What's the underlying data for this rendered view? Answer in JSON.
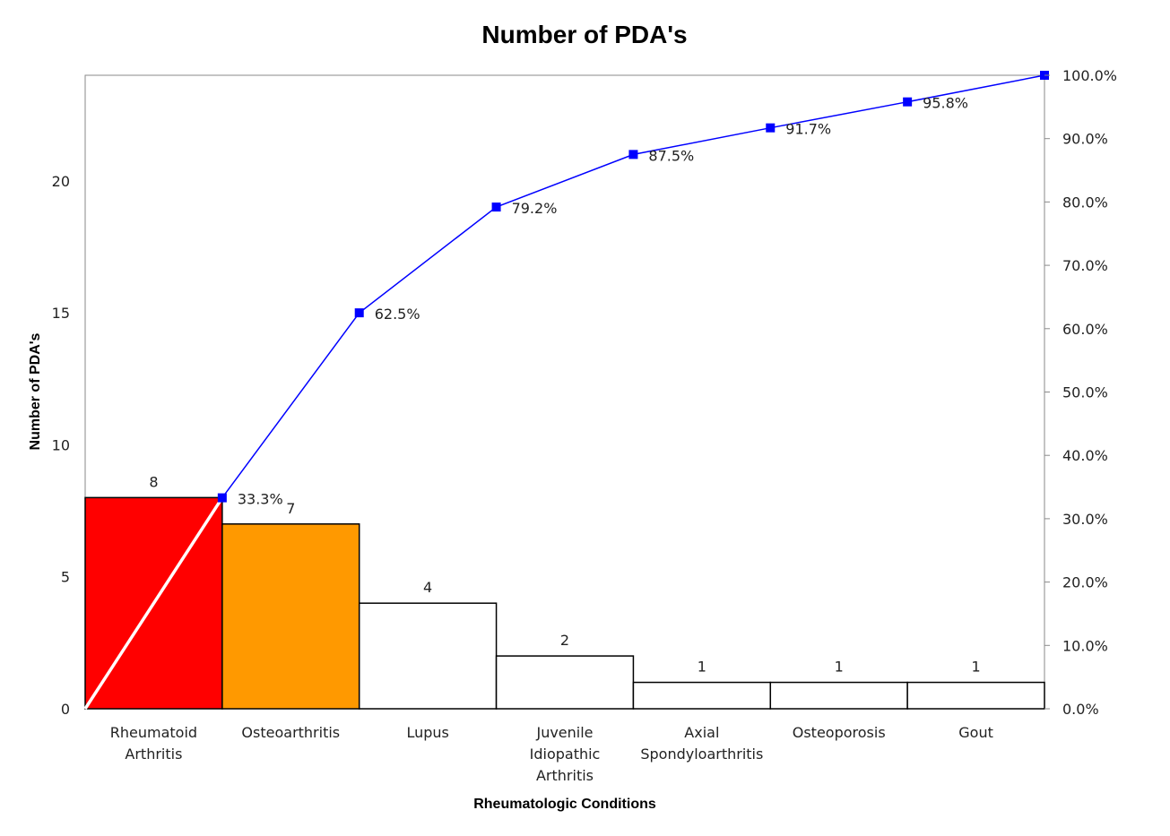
{
  "chart_data": {
    "type": "bar",
    "title": "Number of PDA's",
    "xlabel": "Rheumatologic Conditions",
    "ylabel": "Number of PDA's",
    "categories": [
      [
        "Rheumatoid",
        "Arthritis"
      ],
      [
        "Osteoarthritis"
      ],
      [
        "Lupus"
      ],
      [
        "Juvenile",
        "Idiopathic",
        "Arthritis"
      ],
      [
        "Axial",
        "Spondyloarthritis"
      ],
      [
        "Osteoporosis"
      ],
      [
        "Gout"
      ]
    ],
    "values": [
      8,
      7,
      4,
      2,
      1,
      1,
      1
    ],
    "value_labels": [
      "8",
      "7",
      "4",
      "2",
      "1",
      "1",
      "1"
    ],
    "bar_colors": [
      "#ff0000",
      "#ff9900",
      "#ffffff",
      "#ffffff",
      "#ffffff",
      "#ffffff",
      "#ffffff"
    ],
    "ylim": [
      0,
      24
    ],
    "yticks": [
      0,
      5,
      10,
      15,
      20
    ],
    "cumulative_line": {
      "color": "#0000ff",
      "values": [
        33.3,
        62.5,
        79.2,
        87.5,
        91.7,
        95.8,
        100.0
      ],
      "labels": [
        "33.3%",
        "62.5%",
        "79.2%",
        "87.5%",
        "91.7%",
        "95.8%",
        ""
      ]
    },
    "y2lim": [
      0,
      100
    ],
    "y2ticks": [
      "0.0%",
      "10.0%",
      "20.0%",
      "30.0%",
      "40.0%",
      "50.0%",
      "60.0%",
      "70.0%",
      "80.0%",
      "90.0%",
      "100.0%"
    ],
    "diagonal_line_color": "#ffffff",
    "grid": false
  }
}
